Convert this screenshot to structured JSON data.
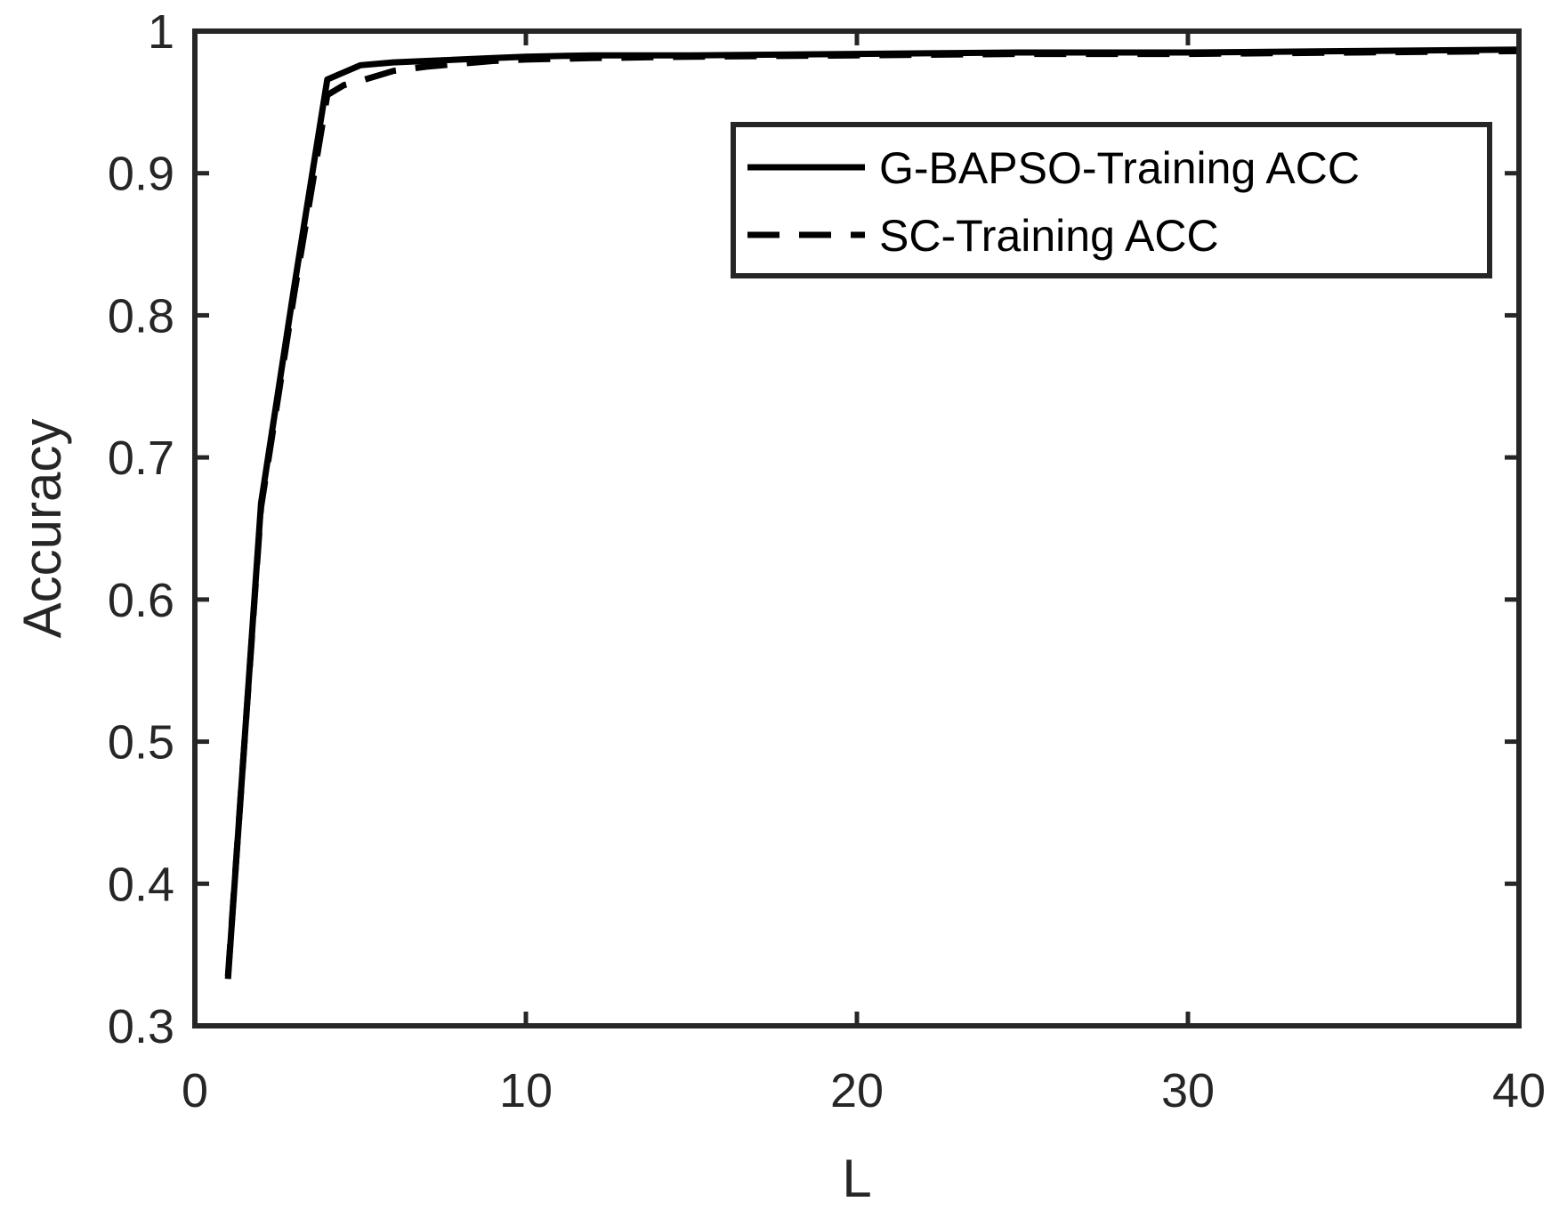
{
  "chart_data": {
    "type": "line",
    "title": "",
    "xlabel": "L",
    "ylabel": "Accuracy",
    "xlim": [
      0,
      40
    ],
    "ylim": [
      0.3,
      1
    ],
    "xticks": [
      0,
      10,
      20,
      30,
      40
    ],
    "yticks": [
      0.3,
      0.4,
      0.5,
      0.6,
      0.7,
      0.8,
      0.9,
      1
    ],
    "xtick_labels": [
      "0",
      "10",
      "20",
      "30",
      "40"
    ],
    "ytick_labels": [
      "0.3",
      "0.4",
      "0.5",
      "0.6",
      "0.7",
      "0.8",
      "0.9",
      "1"
    ],
    "grid": false,
    "legend_position": "top-right",
    "series": [
      {
        "name": "G-BAPSO-Training ACC",
        "line_style": "solid",
        "color": "#000000",
        "x": [
          1,
          2,
          3,
          4,
          5,
          6,
          7,
          8,
          9,
          10,
          12,
          15,
          20,
          25,
          30,
          35,
          40
        ],
        "y": [
          0.333,
          0.668,
          0.82,
          0.966,
          0.976,
          0.978,
          0.979,
          0.98,
          0.981,
          0.982,
          0.983,
          0.983,
          0.984,
          0.985,
          0.985,
          0.986,
          0.987
        ]
      },
      {
        "name": "SC-Training ACC",
        "line_style": "dashed",
        "color": "#000000",
        "x": [
          1,
          2,
          3,
          4,
          4.5,
          5,
          6,
          7,
          8,
          9,
          10,
          12,
          15,
          20,
          25,
          30,
          35,
          40
        ],
        "y": [
          0.335,
          0.665,
          0.815,
          0.955,
          0.962,
          0.965,
          0.972,
          0.975,
          0.977,
          0.979,
          0.98,
          0.981,
          0.982,
          0.983,
          0.984,
          0.984,
          0.985,
          0.986
        ]
      }
    ]
  }
}
